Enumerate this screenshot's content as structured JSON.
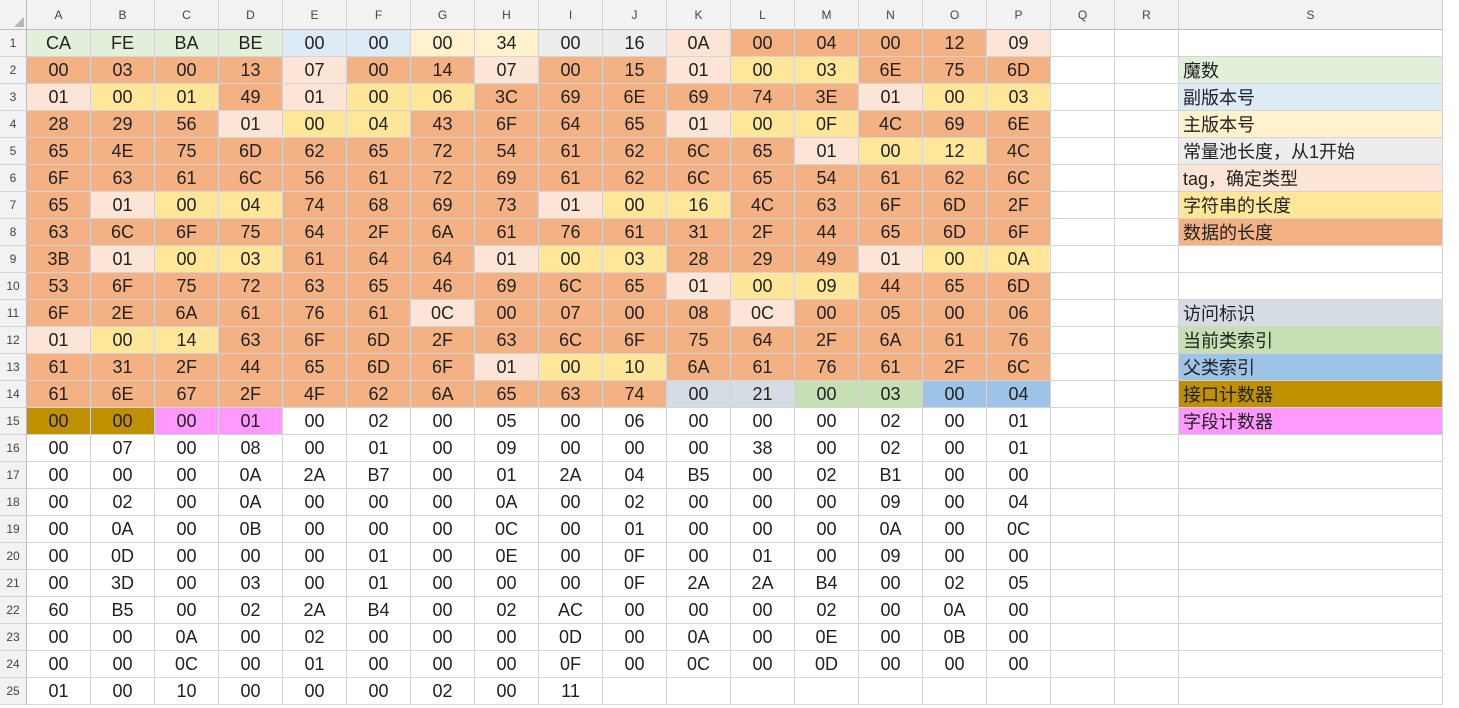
{
  "columns": [
    "A",
    "B",
    "C",
    "D",
    "E",
    "F",
    "G",
    "H",
    "I",
    "J",
    "K",
    "L",
    "M",
    "N",
    "O",
    "P",
    "Q",
    "R",
    "S"
  ],
  "rows": [
    {
      "n": "1",
      "hex": [
        "CA",
        "FE",
        "BA",
        "BE",
        "00",
        "00",
        "00",
        "34",
        "00",
        "16",
        "0A",
        "00",
        "04",
        "00",
        "12",
        "09"
      ],
      "colors": "MMMMNNJJCCTDDDDT"
    },
    {
      "n": "2",
      "hex": [
        "00",
        "03",
        "00",
        "13",
        "07",
        "00",
        "14",
        "07",
        "00",
        "15",
        "01",
        "00",
        "03",
        "6E",
        "75",
        "6D"
      ],
      "colors": "DDDDTDDTDDTSSDDD"
    },
    {
      "n": "3",
      "hex": [
        "01",
        "00",
        "01",
        "49",
        "01",
        "00",
        "06",
        "3C",
        "69",
        "6E",
        "69",
        "74",
        "3E",
        "01",
        "00",
        "03"
      ],
      "colors": "TSSDTSSDDDDDDTSS"
    },
    {
      "n": "4",
      "hex": [
        "28",
        "29",
        "56",
        "01",
        "00",
        "04",
        "43",
        "6F",
        "64",
        "65",
        "01",
        "00",
        "0F",
        "4C",
        "69",
        "6E"
      ],
      "colors": "DDDTSSDDDDTSSDDD"
    },
    {
      "n": "5",
      "hex": [
        "65",
        "4E",
        "75",
        "6D",
        "62",
        "65",
        "72",
        "54",
        "61",
        "62",
        "6C",
        "65",
        "01",
        "00",
        "12",
        "4C"
      ],
      "colors": "DDDDDDDDDDDDTSSD"
    },
    {
      "n": "6",
      "hex": [
        "6F",
        "63",
        "61",
        "6C",
        "56",
        "61",
        "72",
        "69",
        "61",
        "62",
        "6C",
        "65",
        "54",
        "61",
        "62",
        "6C"
      ],
      "colors": "DDDDDDDDDDDDDDDD"
    },
    {
      "n": "7",
      "hex": [
        "65",
        "01",
        "00",
        "04",
        "74",
        "68",
        "69",
        "73",
        "01",
        "00",
        "16",
        "4C",
        "63",
        "6F",
        "6D",
        "2F"
      ],
      "colors": "DTSSDDDDTSSDDDDD"
    },
    {
      "n": "8",
      "hex": [
        "63",
        "6C",
        "6F",
        "75",
        "64",
        "2F",
        "6A",
        "61",
        "76",
        "61",
        "31",
        "2F",
        "44",
        "65",
        "6D",
        "6F"
      ],
      "colors": "DDDDDDDDDDDDDDDD"
    },
    {
      "n": "9",
      "hex": [
        "3B",
        "01",
        "00",
        "03",
        "61",
        "64",
        "64",
        "01",
        "00",
        "03",
        "28",
        "29",
        "49",
        "01",
        "00",
        "0A"
      ],
      "colors": "DTSSDDDTSSDDDTSS"
    },
    {
      "n": "10",
      "hex": [
        "53",
        "6F",
        "75",
        "72",
        "63",
        "65",
        "46",
        "69",
        "6C",
        "65",
        "01",
        "00",
        "09",
        "44",
        "65",
        "6D"
      ],
      "colors": "DDDDDDDDDDTSSDDD"
    },
    {
      "n": "11",
      "hex": [
        "6F",
        "2E",
        "6A",
        "61",
        "76",
        "61",
        "0C",
        "00",
        "07",
        "00",
        "08",
        "0C",
        "00",
        "05",
        "00",
        "06"
      ],
      "colors": "DDDDDDTDDDDTDDDD"
    },
    {
      "n": "12",
      "hex": [
        "01",
        "00",
        "14",
        "63",
        "6F",
        "6D",
        "2F",
        "63",
        "6C",
        "6F",
        "75",
        "64",
        "2F",
        "6A",
        "61",
        "76"
      ],
      "colors": "TSSDDDDDDDDDDDDD"
    },
    {
      "n": "13",
      "hex": [
        "61",
        "31",
        "2F",
        "44",
        "65",
        "6D",
        "6F",
        "01",
        "00",
        "10",
        "6A",
        "61",
        "76",
        "61",
        "2F",
        "6C"
      ],
      "colors": "DDDDDDDTSSDDDDDD"
    },
    {
      "n": "14",
      "hex": [
        "61",
        "6E",
        "67",
        "2F",
        "4F",
        "62",
        "6A",
        "65",
        "63",
        "74",
        "00",
        "21",
        "00",
        "03",
        "00",
        "04"
      ],
      "colors": "DDDDDDDDDDAAGGBB"
    },
    {
      "n": "15",
      "hex": [
        "00",
        "00",
        "00",
        "01",
        "00",
        "02",
        "00",
        "05",
        "00",
        "06",
        "00",
        "00",
        "00",
        "02",
        "00",
        "01"
      ],
      "colors": "IIFFWWWWWWWWWWWW"
    },
    {
      "n": "16",
      "hex": [
        "00",
        "07",
        "00",
        "08",
        "00",
        "01",
        "00",
        "09",
        "00",
        "00",
        "00",
        "38",
        "00",
        "02",
        "00",
        "01"
      ],
      "colors": "WWWWWWWWWWWWWWWW"
    },
    {
      "n": "17",
      "hex": [
        "00",
        "00",
        "00",
        "0A",
        "2A",
        "B7",
        "00",
        "01",
        "2A",
        "04",
        "B5",
        "00",
        "02",
        "B1",
        "00",
        "00"
      ],
      "colors": "WWWWWWWWWWWWWWWW"
    },
    {
      "n": "18",
      "hex": [
        "00",
        "02",
        "00",
        "0A",
        "00",
        "00",
        "00",
        "0A",
        "00",
        "02",
        "00",
        "00",
        "00",
        "09",
        "00",
        "04"
      ],
      "colors": "WWWWWWWWWWWWWWWW"
    },
    {
      "n": "19",
      "hex": [
        "00",
        "0A",
        "00",
        "0B",
        "00",
        "00",
        "00",
        "0C",
        "00",
        "01",
        "00",
        "00",
        "00",
        "0A",
        "00",
        "0C"
      ],
      "colors": "WWWWWWWWWWWWWWWW"
    },
    {
      "n": "20",
      "hex": [
        "00",
        "0D",
        "00",
        "00",
        "00",
        "01",
        "00",
        "0E",
        "00",
        "0F",
        "00",
        "01",
        "00",
        "09",
        "00",
        "00"
      ],
      "colors": "WWWWWWWWWWWWWWWW"
    },
    {
      "n": "21",
      "hex": [
        "00",
        "3D",
        "00",
        "03",
        "00",
        "01",
        "00",
        "00",
        "00",
        "0F",
        "2A",
        "2A",
        "B4",
        "00",
        "02",
        "05"
      ],
      "colors": "WWWWWWWWWWWWWWWW"
    },
    {
      "n": "22",
      "hex": [
        "60",
        "B5",
        "00",
        "02",
        "2A",
        "B4",
        "00",
        "02",
        "AC",
        "00",
        "00",
        "00",
        "02",
        "00",
        "0A",
        "00"
      ],
      "colors": "WWWWWWWWWWWWWWWW"
    },
    {
      "n": "23",
      "hex": [
        "00",
        "00",
        "0A",
        "00",
        "02",
        "00",
        "00",
        "00",
        "0D",
        "00",
        "0A",
        "00",
        "0E",
        "00",
        "0B",
        "00"
      ],
      "colors": "WWWWWWWWWWWWWWWW"
    },
    {
      "n": "24",
      "hex": [
        "00",
        "00",
        "0C",
        "00",
        "01",
        "00",
        "00",
        "00",
        "0F",
        "00",
        "0C",
        "00",
        "0D",
        "00",
        "00",
        "00"
      ],
      "colors": "WWWWWWWWWWWWWWWW"
    },
    {
      "n": "25",
      "hex": [
        "01",
        "00",
        "10",
        "00",
        "00",
        "00",
        "02",
        "00",
        "11",
        "",
        "",
        "",
        "",
        "",
        "",
        ""
      ],
      "colors": "WWWWWWWWWWWWWWWW"
    }
  ],
  "legend": [
    {
      "row": 2,
      "text": "魔数",
      "color": "#e2efda"
    },
    {
      "row": 3,
      "text": "副版本号",
      "color": "#ddebf7"
    },
    {
      "row": 4,
      "text": "主版本号",
      "color": "#fff2cc"
    },
    {
      "row": 5,
      "text": "常量池长度，从1开始",
      "color": "#ededed"
    },
    {
      "row": 6,
      "text": "tag，确定类型",
      "color": "#fce4d6"
    },
    {
      "row": 7,
      "text": "字符串的长度",
      "color": "#ffe699"
    },
    {
      "row": 8,
      "text": "数据的长度",
      "color": "#f4b183"
    },
    {
      "row": 11,
      "text": "访问标识",
      "color": "#d6dce4"
    },
    {
      "row": 12,
      "text": "当前类索引",
      "color": "#c6e0b4"
    },
    {
      "row": 13,
      "text": "父类索引",
      "color": "#9dc3e6"
    },
    {
      "row": 14,
      "text": "接口计数器",
      "color": "#bf9000"
    },
    {
      "row": 15,
      "text": "字段计数器",
      "color": "#ff99ff"
    }
  ],
  "palette": {
    "M": "#e2efda",
    "N": "#ddebf7",
    "J": "#fff2cc",
    "C": "#ededed",
    "T": "#fce4d6",
    "S": "#ffe699",
    "D": "#f4b183",
    "A": "#d6dce4",
    "G": "#c6e0b4",
    "B": "#9dc3e6",
    "I": "#bf9000",
    "F": "#ff99ff",
    "W": "#ffffff"
  },
  "ui": {
    "select_all_icon": "select-all-triangle-icon"
  }
}
